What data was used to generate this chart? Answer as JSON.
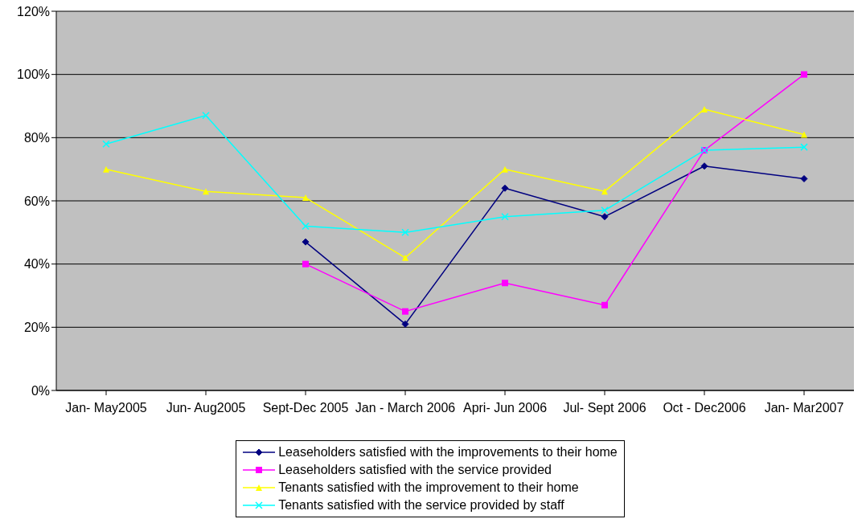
{
  "chart_data": {
    "type": "line",
    "categories": [
      "Jan- May2005",
      "Jun- Aug2005",
      "Sept-Dec 2005",
      "Jan - March 2006",
      "Apri- Jun 2006",
      "Jul- Sept 2006",
      "Oct - Dec2006",
      "Jan- Mar2007"
    ],
    "series": [
      {
        "name": "Leaseholders satisfied with the improvements to their home",
        "color": "#000080",
        "marker": "diamond",
        "values": [
          null,
          null,
          47,
          21,
          64,
          55,
          71,
          67
        ]
      },
      {
        "name": "Leaseholders satisfied with the service provided",
        "color": "#ff00ff",
        "marker": "square",
        "values": [
          null,
          null,
          40,
          25,
          34,
          27,
          76,
          100
        ]
      },
      {
        "name": "Tenants satisfied with the improvement to their home",
        "color": "#ffff00",
        "marker": "triangle",
        "values": [
          70,
          63,
          61,
          42,
          70,
          63,
          89,
          81
        ]
      },
      {
        "name": "Tenants satisfied with the service provided by staff",
        "color": "#00ffff",
        "marker": "cross",
        "values": [
          78,
          87,
          52,
          50,
          55,
          57,
          76,
          77
        ]
      }
    ],
    "ylim": [
      0,
      120
    ],
    "yticks": [
      {
        "value": 0,
        "label": "0%"
      },
      {
        "value": 20,
        "label": "20%"
      },
      {
        "value": 40,
        "label": "40%"
      },
      {
        "value": 60,
        "label": "60%"
      },
      {
        "value": 80,
        "label": "80%"
      },
      {
        "value": 100,
        "label": "100%"
      },
      {
        "value": 120,
        "label": "120%"
      }
    ],
    "grid": "y",
    "legend": "bottom",
    "line_style": "solid"
  }
}
